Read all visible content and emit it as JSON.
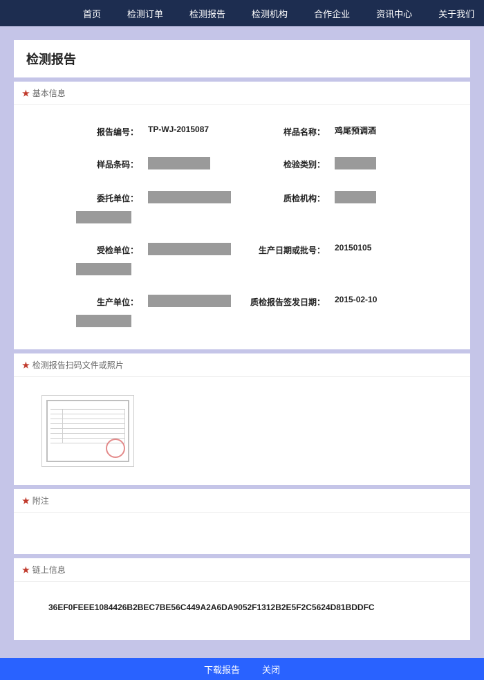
{
  "nav": {
    "items": [
      "首页",
      "检测订单",
      "检测报告",
      "检测机构",
      "合作企业",
      "资讯中心",
      "关于我们"
    ]
  },
  "page_title": "检测报告",
  "sections": {
    "basic": "基本信息",
    "scan": "检测报告扫码文件或照片",
    "remark": "附注",
    "chain": "链上信息"
  },
  "fields": {
    "report_no_label": "报告编号：",
    "report_no": "TP-WJ-2015087",
    "sample_name_label": "样品名称：",
    "sample_name": "鸡尾预调酒",
    "sample_barcode_label": "样品条码：",
    "inspect_type_label": "检验类别：",
    "entrust_unit_label": "委托单位：",
    "qc_org_label": "质检机构：",
    "inspected_unit_label": "受检单位：",
    "prod_date_label": "生产日期或批号：",
    "prod_date": "20150105",
    "prod_unit_label": "生产单位：",
    "issue_date_label": "质检报告签发日期：",
    "issue_date": "2015-02-10"
  },
  "chain_hash": "36EF0FEEE1084426B2BEC7BE56C449A2A6DA9052F1312B2E5F2C5624D81BDDFC",
  "footer": {
    "download": "下载报告",
    "close": "关闭"
  }
}
